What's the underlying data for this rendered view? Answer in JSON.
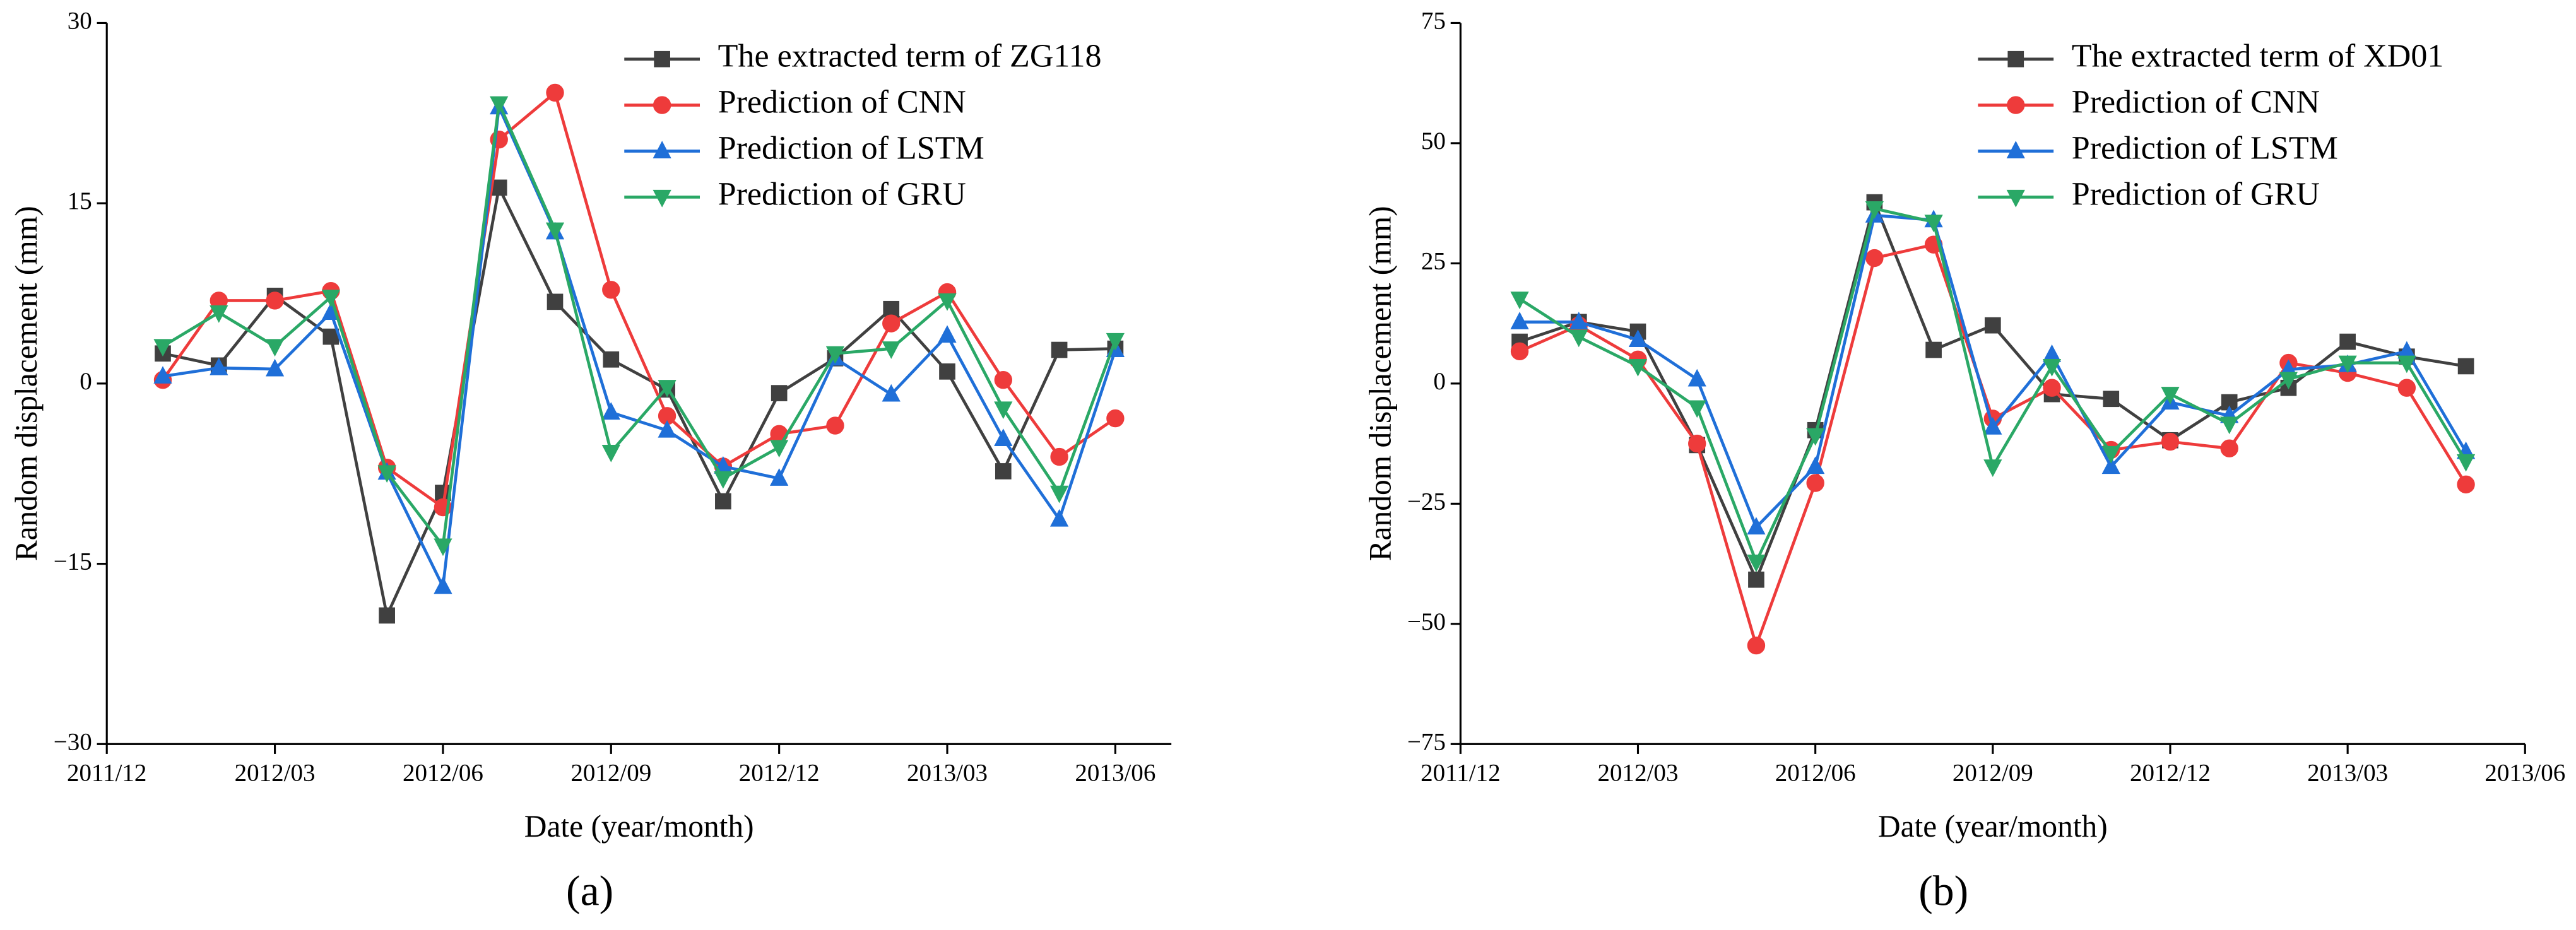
{
  "chart_data": [
    {
      "type": "line",
      "label": "(a)",
      "x_label": "Date (year/month)",
      "y_label": "Random displacement (mm)",
      "x": [
        "2012/01",
        "2012/02",
        "2012/03",
        "2012/04",
        "2012/05",
        "2012/06",
        "2012/07",
        "2012/08",
        "2012/09",
        "2012/10",
        "2012/11",
        "2012/12",
        "2013/01",
        "2013/02",
        "2013/03",
        "2013/04",
        "2013/05",
        "2013/06"
      ],
      "xlim": [
        "2011/12",
        "2013/07"
      ],
      "xticks": [
        "2011/12",
        "2012/03",
        "2012/06",
        "2012/09",
        "2012/12",
        "2013/03",
        "2013/06"
      ],
      "ylim": [
        -30,
        30
      ],
      "yticks": [
        {
          "value": -30,
          "label": "−30"
        },
        {
          "value": -15,
          "label": "−15"
        },
        0,
        15,
        30
      ],
      "legend": "upper right",
      "series": [
        {
          "name": "The extracted term of ZG118",
          "color": "#404040",
          "marker": "square",
          "values": [
            2.5,
            1.5,
            7.3,
            3.9,
            -19.3,
            -9.1,
            16.3,
            6.8,
            2.0,
            -0.5,
            -9.8,
            -0.8,
            2.1,
            6.2,
            1.0,
            -7.3,
            2.8,
            2.9
          ]
        },
        {
          "name": "Prediction of CNN",
          "color": "#ee3b3b",
          "marker": "circle",
          "values": [
            0.3,
            6.9,
            6.9,
            7.7,
            -7.0,
            -10.3,
            20.3,
            24.2,
            7.8,
            -2.7,
            -6.9,
            -4.2,
            -3.5,
            5.0,
            7.6,
            0.3,
            -6.1,
            -2.9
          ]
        },
        {
          "name": "Prediction of LSTM",
          "color": "#1f6fd8",
          "marker": "triangle-up",
          "values": [
            0.6,
            1.3,
            1.2,
            5.9,
            -7.4,
            -16.9,
            23.0,
            12.6,
            -2.4,
            -3.9,
            -6.9,
            -7.9,
            2.1,
            -0.9,
            4.0,
            -4.6,
            -11.3,
            2.8
          ]
        },
        {
          "name": "Prediction of GRU",
          "color": "#2aa866",
          "marker": "triangle-down",
          "values": [
            3.1,
            5.9,
            3.1,
            7.2,
            -7.4,
            -13.5,
            23.3,
            12.8,
            -5.7,
            -0.3,
            -7.9,
            -5.3,
            2.5,
            2.9,
            6.9,
            -2.1,
            -9.1,
            3.6
          ]
        }
      ]
    },
    {
      "type": "line",
      "label": "(b)",
      "x_label": "Date (year/month)",
      "y_label": "Random displacement (mm)",
      "x": [
        "2012/01",
        "2012/02",
        "2012/03",
        "2012/04",
        "2012/05",
        "2012/06",
        "2012/07",
        "2012/08",
        "2012/09",
        "2012/10",
        "2012/11",
        "2012/12",
        "2013/01",
        "2013/02",
        "2013/03",
        "2013/04",
        "2013/05"
      ],
      "xlim": [
        "2011/12",
        "2013/06"
      ],
      "xticks": [
        "2011/12",
        "2012/03",
        "2012/06",
        "2012/09",
        "2012/12",
        "2013/03",
        "2013/06"
      ],
      "ylim": [
        -75,
        75
      ],
      "yticks": [
        {
          "value": -75,
          "label": "−75"
        },
        {
          "value": -50,
          "label": "−50"
        },
        {
          "value": -25,
          "label": "−25"
        },
        0,
        25,
        50,
        75
      ],
      "legend": "upper right",
      "series": [
        {
          "name": "The extracted term of XD01",
          "color": "#404040",
          "marker": "square",
          "values": [
            8.7,
            12.8,
            10.8,
            -12.8,
            -40.8,
            -9.7,
            37.7,
            7.0,
            12.1,
            -2.2,
            -3.2,
            -11.8,
            -3.9,
            -0.9,
            8.7,
            5.6,
            3.6
          ]
        },
        {
          "name": "Prediction of CNN",
          "color": "#ee3b3b",
          "marker": "circle",
          "values": [
            6.7,
            12.1,
            5.0,
            -12.5,
            -54.5,
            -20.7,
            26.1,
            28.9,
            -7.3,
            -0.9,
            -13.8,
            -12.1,
            -13.5,
            4.3,
            2.2,
            -0.9,
            -21.0
          ]
        },
        {
          "name": "Prediction of LSTM",
          "color": "#1f6fd8",
          "marker": "triangle-up",
          "values": [
            12.8,
            12.8,
            9.1,
            0.9,
            -29.9,
            -17.3,
            35.0,
            34.0,
            -9.1,
            6.0,
            -17.3,
            -3.9,
            -6.7,
            2.9,
            3.9,
            6.7,
            -14.2
          ]
        },
        {
          "name": "Prediction of GRU",
          "color": "#2aa866",
          "marker": "triangle-down",
          "values": [
            17.6,
            9.7,
            3.6,
            -5.0,
            -37.1,
            -10.8,
            36.4,
            33.6,
            -17.3,
            3.6,
            -14.5,
            -2.2,
            -8.4,
            0.9,
            4.3,
            4.3,
            -16.2
          ]
        }
      ]
    }
  ]
}
